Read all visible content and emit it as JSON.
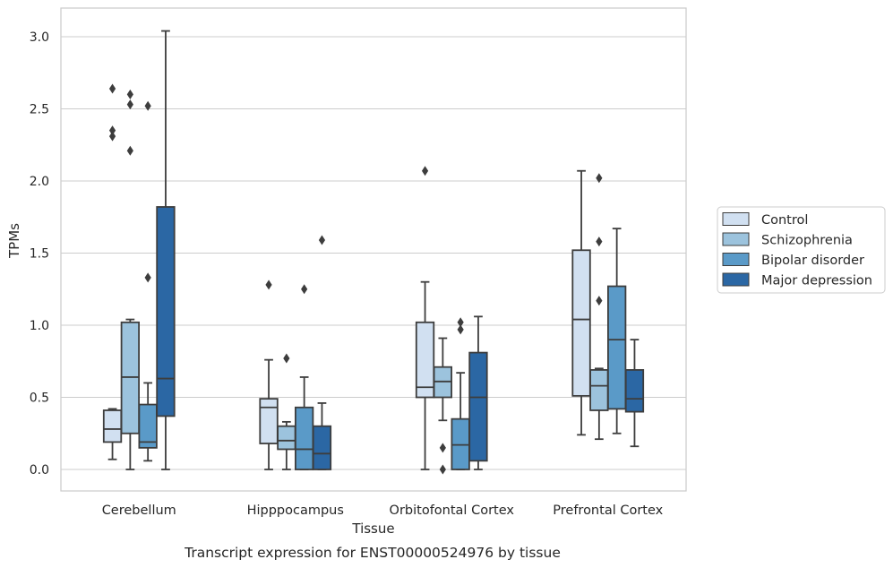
{
  "chart_data": {
    "type": "box",
    "title": "",
    "caption": "Transcript expression for ENST00000524976 by tissue",
    "xlabel": "Tissue",
    "ylabel": "TPMs",
    "ylim": [
      -0.15,
      3.2
    ],
    "yticks": [
      0.0,
      0.5,
      1.0,
      1.5,
      2.0,
      2.5,
      3.0
    ],
    "ytick_labels": [
      "0.0",
      "0.5",
      "1.0",
      "1.5",
      "2.0",
      "2.5",
      "3.0"
    ],
    "grid": "horizontal",
    "legend_position": "right",
    "categories": [
      "Cerebellum",
      "Hipppocampus",
      "Orbitofontal Cortex",
      "Prefrontal Cortex"
    ],
    "series": [
      {
        "name": "Control",
        "color": "#d1e0f1",
        "boxes": [
          {
            "whisker_low": 0.07,
            "q1": 0.19,
            "median": 0.28,
            "q3": 0.41,
            "whisker_high": 0.42,
            "outliers": [
              2.64,
              2.35,
              2.31
            ]
          },
          {
            "whisker_low": 0.0,
            "q1": 0.18,
            "median": 0.43,
            "q3": 0.49,
            "whisker_high": 0.76,
            "outliers": [
              1.28
            ]
          },
          {
            "whisker_low": 0.0,
            "q1": 0.5,
            "median": 0.57,
            "q3": 1.02,
            "whisker_high": 1.3,
            "outliers": [
              2.07
            ]
          },
          {
            "whisker_low": 0.24,
            "q1": 0.51,
            "median": 1.04,
            "q3": 1.52,
            "whisker_high": 2.07,
            "outliers": []
          }
        ]
      },
      {
        "name": "Schizophrenia",
        "color": "#9cc3dd",
        "boxes": [
          {
            "whisker_low": 0.0,
            "q1": 0.25,
            "median": 0.64,
            "q3": 1.02,
            "whisker_high": 1.04,
            "outliers": [
              2.6,
              2.53,
              2.21
            ]
          },
          {
            "whisker_low": 0.0,
            "q1": 0.14,
            "median": 0.2,
            "q3": 0.3,
            "whisker_high": 0.33,
            "outliers": [
              0.77
            ]
          },
          {
            "whisker_low": 0.34,
            "q1": 0.5,
            "median": 0.61,
            "q3": 0.71,
            "whisker_high": 0.91,
            "outliers": [
              0.15,
              0.0
            ]
          },
          {
            "whisker_low": 0.21,
            "q1": 0.41,
            "median": 0.58,
            "q3": 0.69,
            "whisker_high": 0.7,
            "outliers": [
              2.02,
              1.58,
              1.17
            ]
          }
        ]
      },
      {
        "name": "Bipolar disorder",
        "color": "#5a9ac8",
        "boxes": [
          {
            "whisker_low": 0.06,
            "q1": 0.15,
            "median": 0.19,
            "q3": 0.45,
            "whisker_high": 0.6,
            "outliers": [
              2.52,
              1.33
            ]
          },
          {
            "whisker_low": 0.0,
            "q1": 0.0,
            "median": 0.14,
            "q3": 0.43,
            "whisker_high": 0.64,
            "outliers": [
              1.25
            ]
          },
          {
            "whisker_low": 0.0,
            "q1": 0.0,
            "median": 0.17,
            "q3": 0.35,
            "whisker_high": 0.67,
            "outliers": [
              1.02,
              0.97
            ]
          },
          {
            "whisker_low": 0.25,
            "q1": 0.42,
            "median": 0.9,
            "q3": 1.27,
            "whisker_high": 1.67,
            "outliers": []
          }
        ]
      },
      {
        "name": "Major depression",
        "color": "#2b67a4",
        "boxes": [
          {
            "whisker_low": 0.0,
            "q1": 0.37,
            "median": 0.63,
            "q3": 1.82,
            "whisker_high": 3.04,
            "outliers": []
          },
          {
            "whisker_low": 0.0,
            "q1": 0.0,
            "median": 0.11,
            "q3": 0.3,
            "whisker_high": 0.46,
            "outliers": [
              1.59
            ]
          },
          {
            "whisker_low": 0.0,
            "q1": 0.06,
            "median": 0.5,
            "q3": 0.81,
            "whisker_high": 1.06,
            "outliers": []
          },
          {
            "whisker_low": 0.16,
            "q1": 0.4,
            "median": 0.49,
            "q3": 0.69,
            "whisker_high": 0.9,
            "outliers": []
          }
        ]
      }
    ]
  }
}
